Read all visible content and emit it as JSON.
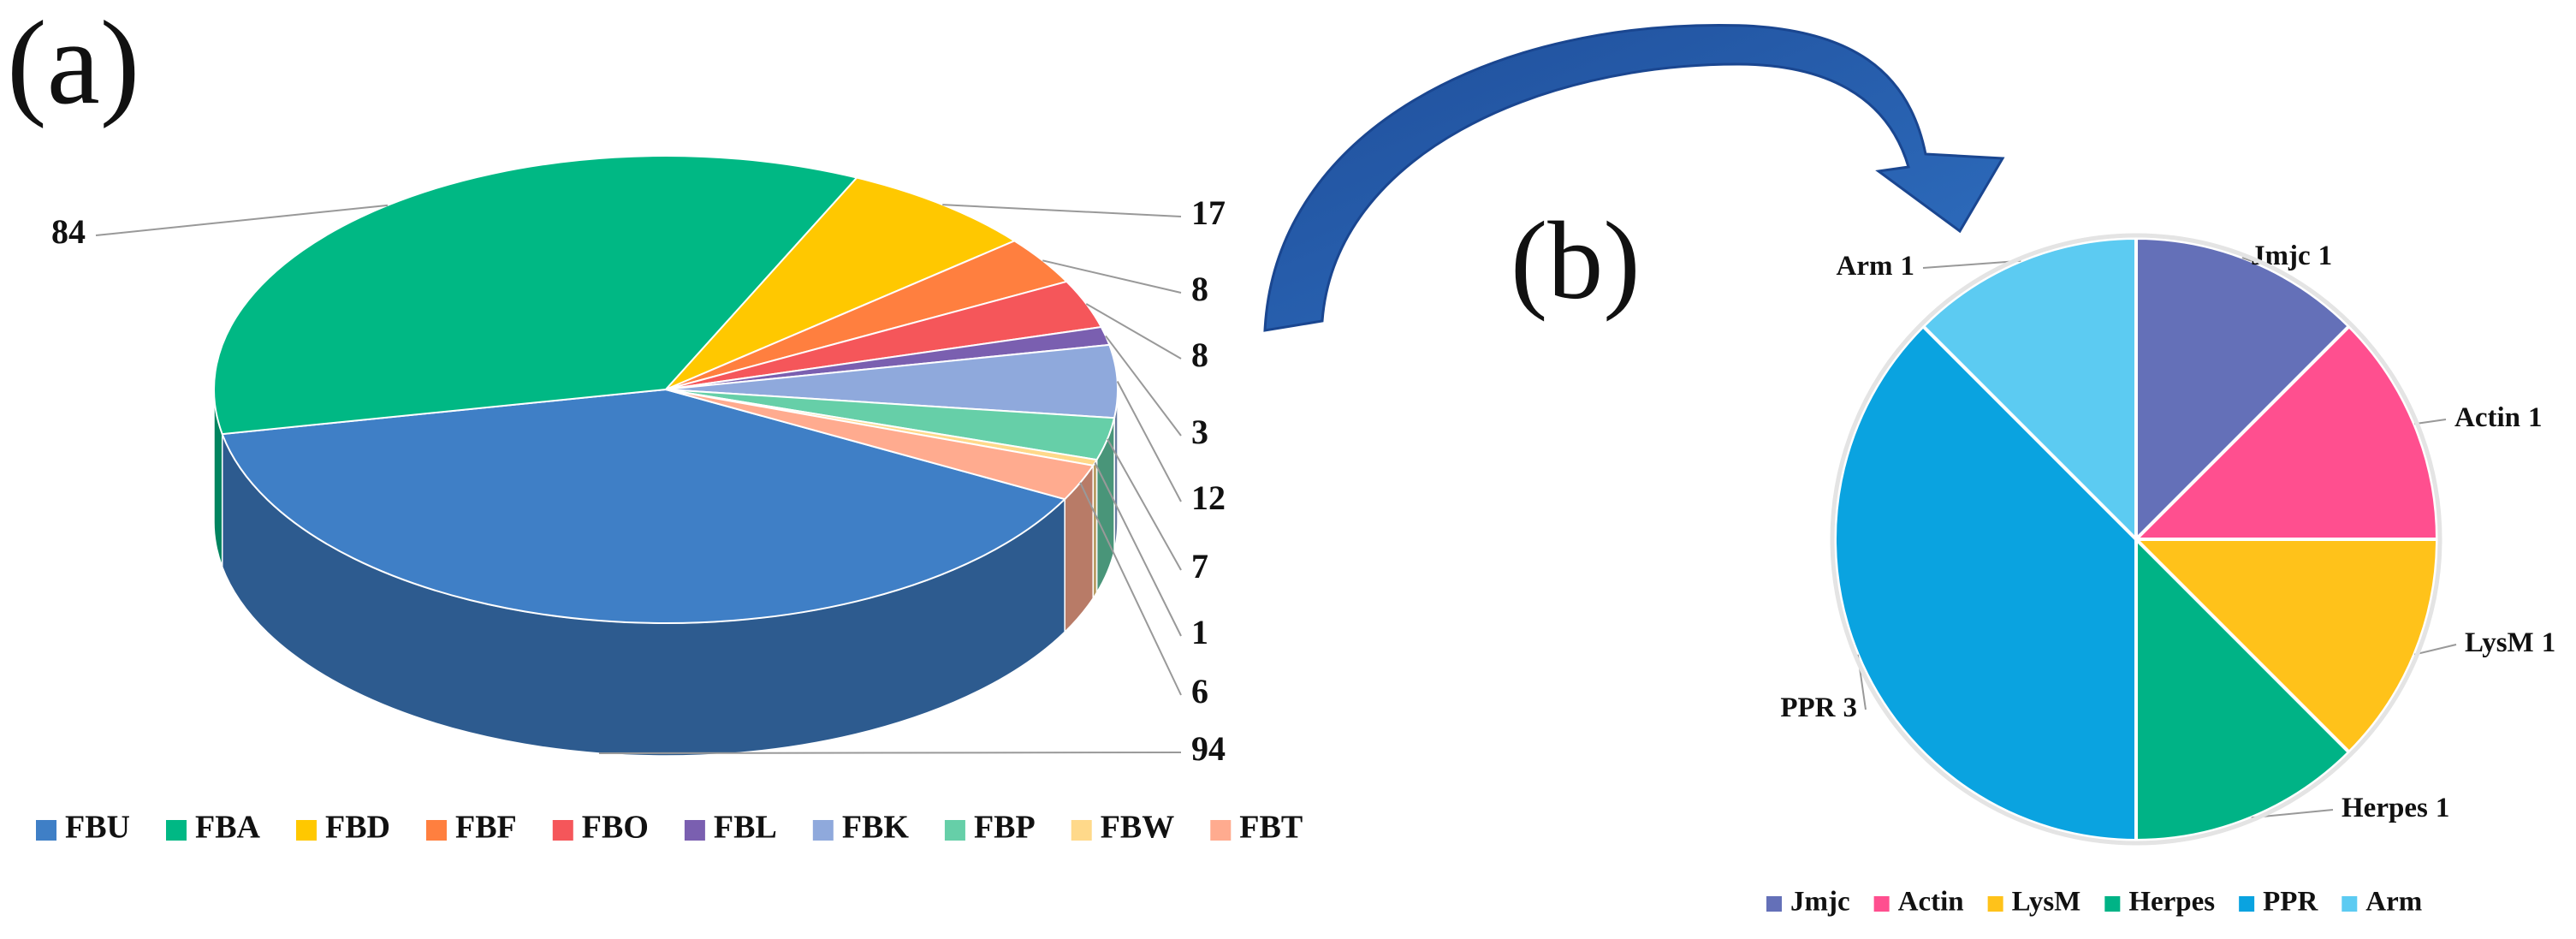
{
  "chart_data": [
    {
      "type": "pie",
      "3d": true,
      "title": "(a)",
      "categories": [
        "FBU",
        "FBA",
        "FBD",
        "FBF",
        "FBO",
        "FBL",
        "FBK",
        "FBP",
        "FBW",
        "FBT"
      ],
      "values": [
        94,
        84,
        17,
        8,
        8,
        3,
        12,
        7,
        1,
        6
      ],
      "colors": [
        "#3f7fc6",
        "#00b884",
        "#ffc800",
        "#ff7f3f",
        "#f5565a",
        "#7a5fb0",
        "#8fa9dc",
        "#66cfa8",
        "#ffd98a",
        "#ffab8f"
      ]
    },
    {
      "type": "pie",
      "title": "(b)",
      "categories": [
        "Jmjc",
        "Actin",
        "LysM",
        "Herpes",
        "PPR",
        "Arm"
      ],
      "values": [
        1,
        1,
        1,
        1,
        3,
        1
      ],
      "colors": [
        "#6470b8",
        "#ff4f8f",
        "#ffc21a",
        "#00b386",
        "#0aa3e0",
        "#5ccbf2"
      ]
    }
  ]
}
